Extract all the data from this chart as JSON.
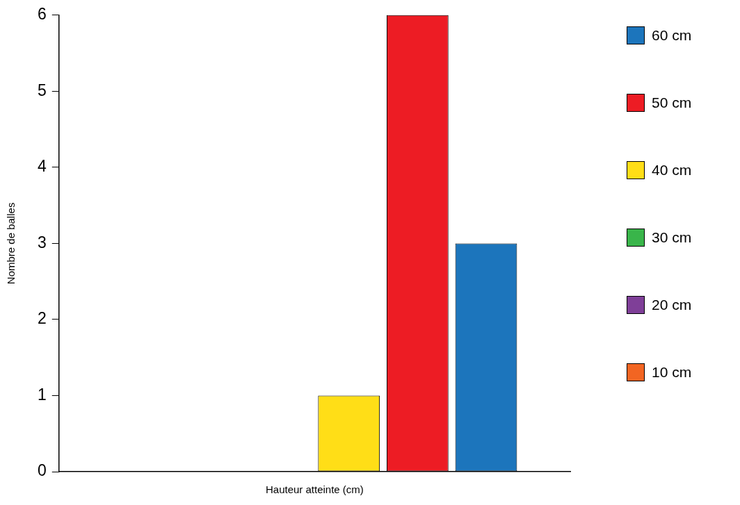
{
  "chart_data": {
    "type": "bar",
    "xlabel": "Hauteur atteinte (cm)",
    "ylabel": "Nombre de balles",
    "categories": [
      null
    ],
    "series": [
      {
        "name": "10 cm",
        "color": "#f26522",
        "values": [
          0
        ]
      },
      {
        "name": "20 cm",
        "color": "#7f3f98",
        "values": [
          0
        ]
      },
      {
        "name": "30 cm",
        "color": "#39b54a",
        "values": [
          0
        ]
      },
      {
        "name": "40 cm",
        "color": "#ffde17",
        "values": [
          1
        ]
      },
      {
        "name": "50 cm",
        "color": "#ed1c24",
        "values": [
          6
        ]
      },
      {
        "name": "60 cm",
        "color": "#1c75bc",
        "values": [
          3
        ]
      }
    ],
    "ylim": [
      0,
      6
    ],
    "yticks": [
      0,
      1,
      2,
      3,
      4,
      5,
      6
    ],
    "grid": false,
    "legend": "right"
  }
}
